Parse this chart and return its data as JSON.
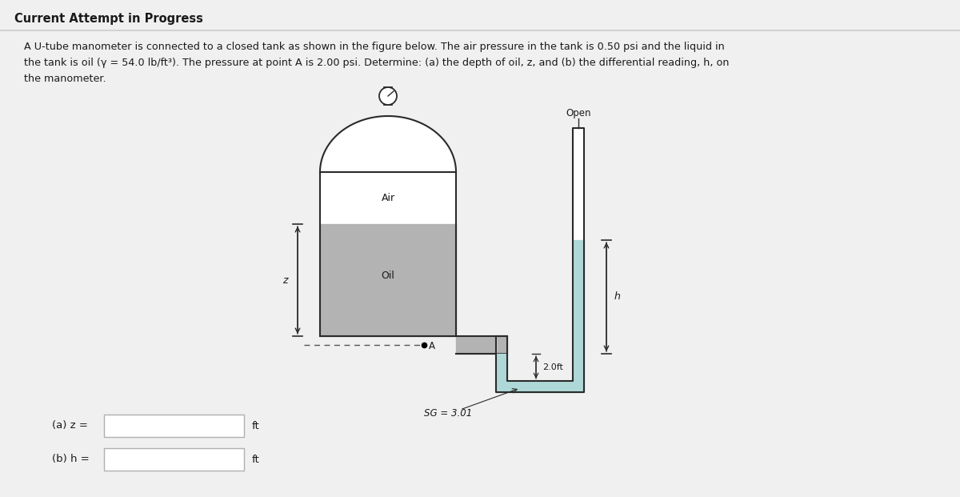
{
  "title": "Current Attempt in Progress",
  "line1": "A U-tube manometer is connected to a closed tank as shown in the figure below. The air pressure in the tank is 0.50 psi and the liquid in",
  "line2": "the tank is oil (γ = 54.0 lb/ft³). The pressure at point A is 2.00 psi. Determine: (a) the depth of oil, z, and (b) the differential reading, h, on",
  "line3": "the manometer.",
  "label_a": "(a) z =",
  "label_b": "(b) h =",
  "unit": "ft",
  "air_label": "Air",
  "oil_label": "Oil",
  "open_label": "Open",
  "sg_label": "SG = 3.01",
  "h_label": "h",
  "z_label": "z",
  "A_label": "A",
  "dim_label": "2.0ft",
  "bg_color": "#f0f0f0",
  "tank_fill_color": "#b3b3b3",
  "manometer_fluid_color": "#aed8d8",
  "line_color": "#2a2a2a",
  "text_color": "#1a1a1a",
  "dashed_color": "#555555",
  "white": "#ffffff",
  "box_border": "#b0b0b0",
  "title_color": "#1a1a1a",
  "sep_color": "#cccccc"
}
